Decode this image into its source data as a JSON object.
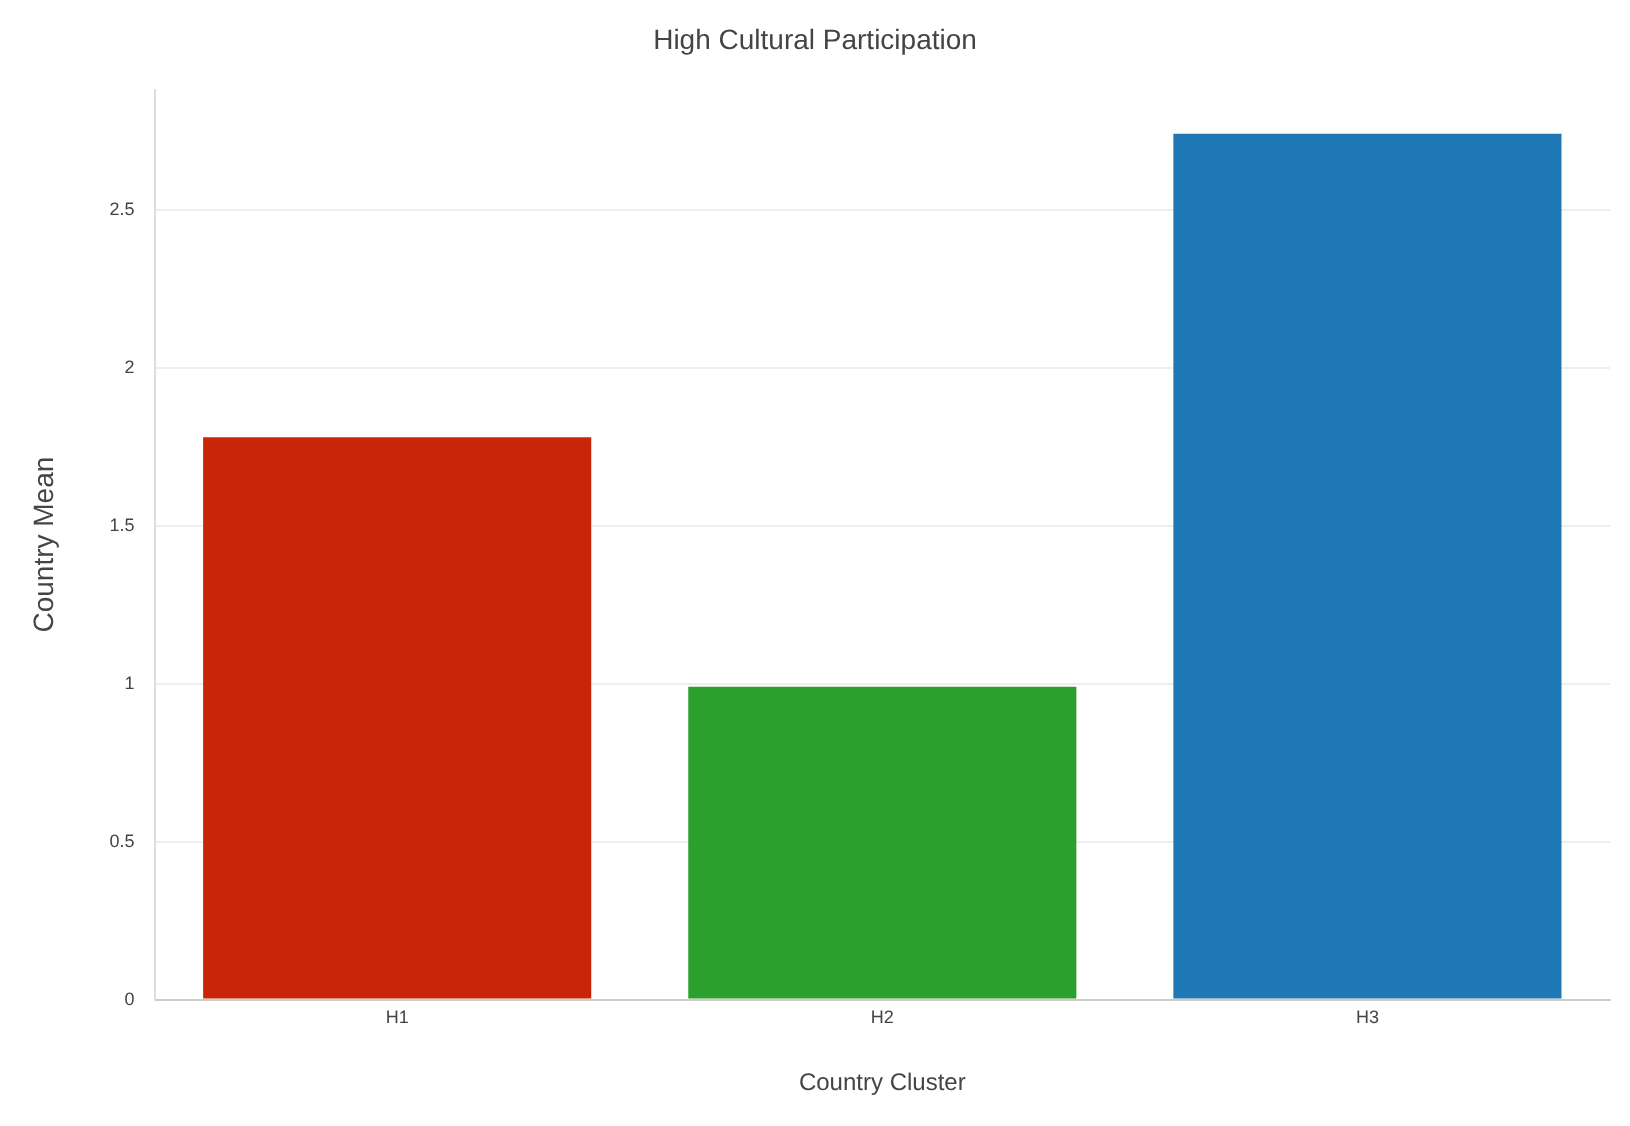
{
  "chart_data": {
    "type": "bar",
    "title": "High Cultural Participation",
    "xlabel": "Country Cluster",
    "ylabel": "Country Mean",
    "categories": [
      "H1",
      "H2",
      "H3"
    ],
    "values": [
      1.78,
      0.99,
      2.74
    ],
    "colors": [
      "#c92508",
      "#2ca02c",
      "#1f77b4"
    ],
    "ylim": [
      0,
      2.88
    ],
    "yticks": [
      0,
      0.5,
      1,
      1.5,
      2,
      2.5
    ],
    "grid": "y",
    "legend": false
  }
}
